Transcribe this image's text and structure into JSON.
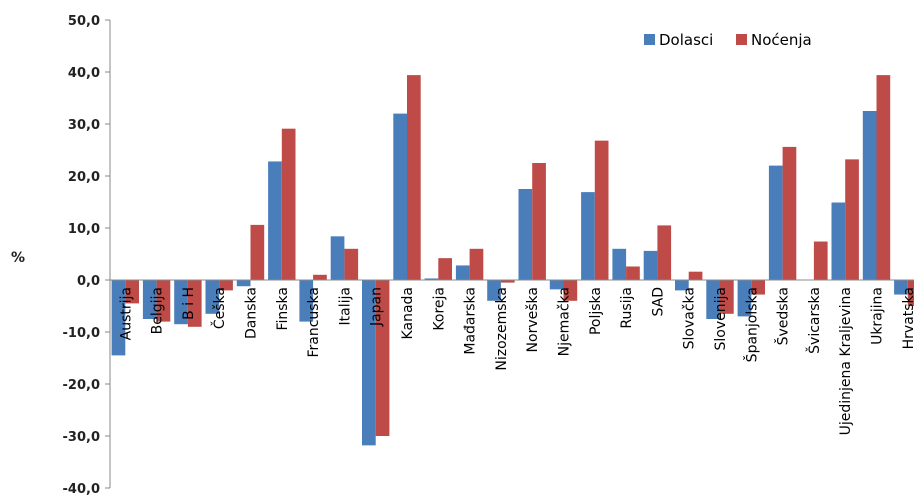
{
  "chart_data": {
    "type": "bar",
    "ylabel": "%",
    "ylim": [
      -40,
      50
    ],
    "ytick_step": 10,
    "ytick_labels": [
      "-40,0",
      "-30,0",
      "-20,0",
      "-10,0",
      "0,0",
      "10,0",
      "20,0",
      "30,0",
      "40,0",
      "50,0"
    ],
    "grid": false,
    "legend_position": "top-right",
    "categories": [
      "Austrija",
      "Belgija",
      "B i H",
      "Češka",
      "Danska",
      "Finska",
      "Francuska",
      "Italija",
      "Japan",
      "Kanada",
      "Koreja",
      "Mađarska",
      "Nizozemska",
      "Norveška",
      "Njemačka",
      "Poljska",
      "Rusija",
      "SAD",
      "Slovačka",
      "Slovenija",
      "Španjolska",
      "Švedska",
      "Švicarska",
      "Ujedinjena Kraljevina",
      "Ukrajina",
      "Hrvatska"
    ],
    "series": [
      {
        "name": "Dolasci",
        "color": "#4a7ebb",
        "values": [
          -14.5,
          -7.5,
          -8.5,
          -6.5,
          -1.2,
          22.8,
          -8.0,
          8.4,
          -31.8,
          32.0,
          0.3,
          2.8,
          -4.0,
          17.5,
          -1.8,
          16.9,
          6.0,
          5.6,
          -2.0,
          -7.5,
          -7.0,
          22.0,
          0.0,
          14.9,
          32.5,
          -2.8
        ]
      },
      {
        "name": "Noćenja",
        "color": "#be4b48",
        "values": [
          -4.5,
          -8.0,
          -9.0,
          -2.0,
          10.6,
          29.1,
          1.0,
          6.0,
          -30.0,
          39.4,
          4.2,
          6.0,
          -0.5,
          22.5,
          -4.0,
          26.8,
          2.6,
          10.5,
          1.6,
          -6.5,
          -2.8,
          25.6,
          7.4,
          23.2,
          39.4,
          -5.0
        ]
      }
    ]
  }
}
